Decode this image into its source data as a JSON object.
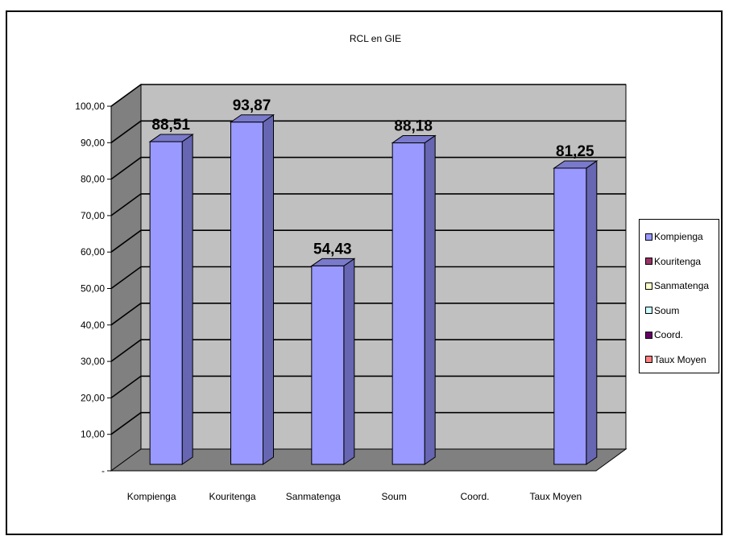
{
  "chart_data": {
    "type": "bar",
    "title": "RCL en GIE",
    "xlabel": "",
    "ylabel": "",
    "categories": [
      "Kompienga",
      "Kouritenga",
      "Sanmatenga",
      "Soum",
      "Coord.",
      "Taux Moyen"
    ],
    "values": [
      88.51,
      93.87,
      54.43,
      88.18,
      null,
      81.25
    ],
    "data_labels": [
      "88,51",
      "93,87",
      "54,43",
      "88,18",
      "",
      "81,25"
    ],
    "ylim": [
      0,
      100
    ],
    "y_ticks": [
      {
        "value": 0,
        "label": "-"
      },
      {
        "value": 10,
        "label": "10,00"
      },
      {
        "value": 20,
        "label": "20,00"
      },
      {
        "value": 30,
        "label": "30,00"
      },
      {
        "value": 40,
        "label": "40,00"
      },
      {
        "value": 50,
        "label": "50,00"
      },
      {
        "value": 60,
        "label": "60,00"
      },
      {
        "value": 70,
        "label": "70,00"
      },
      {
        "value": 80,
        "label": "80,00"
      },
      {
        "value": 90,
        "label": "90,00"
      },
      {
        "value": 100,
        "label": "100,00"
      }
    ],
    "grid": true,
    "style": "3d-column",
    "legend": {
      "placement": "right",
      "entries": [
        {
          "label": "Kompienga",
          "color": "#9999ff"
        },
        {
          "label": "Kouritenga",
          "color": "#993366"
        },
        {
          "label": "Sanmatenga",
          "color": "#ffffcc"
        },
        {
          "label": "Soum",
          "color": "#ccffff"
        },
        {
          "label": "Coord.",
          "color": "#660066"
        },
        {
          "label": "Taux Moyen",
          "color": "#ff8080"
        }
      ]
    },
    "colors": {
      "bar_front": "#9999ff",
      "bar_side": "#6666b3",
      "bar_top": "#7a7acc",
      "back_wall": "#c0c0c0",
      "side_wall": "#808080",
      "floor": "#808080"
    }
  }
}
